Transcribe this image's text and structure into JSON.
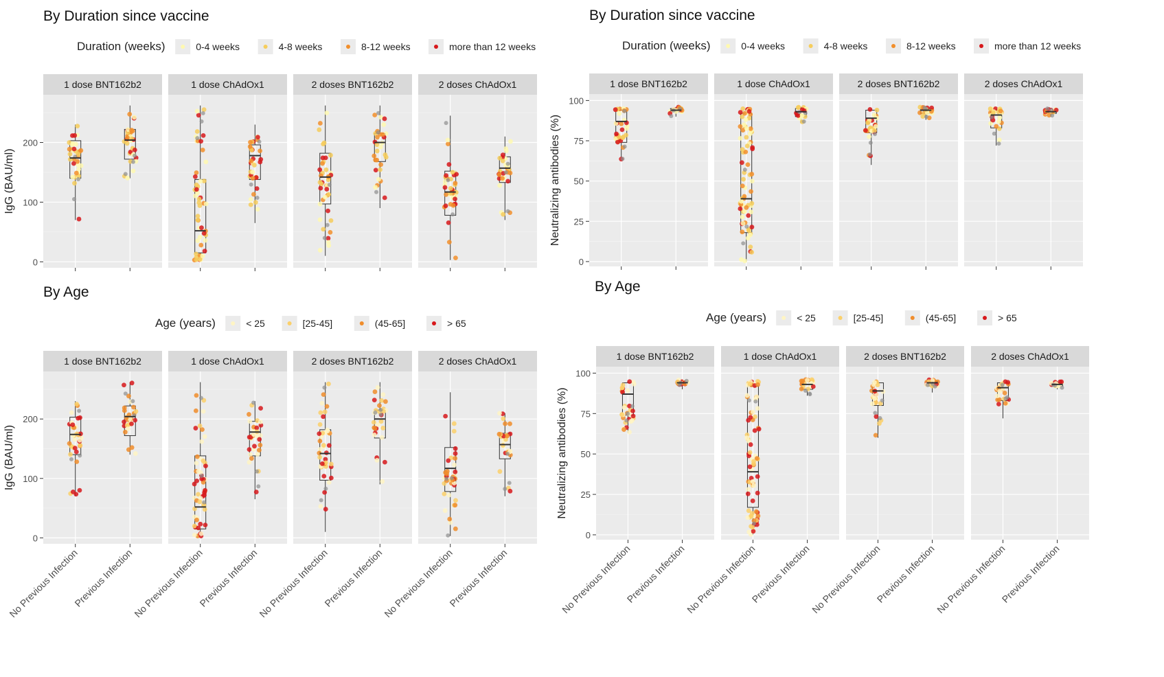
{
  "colors": {
    "panel_bg": "#ebebeb",
    "strip_bg": "#d9d9d9",
    "grid": "#ffffff",
    "box": "#333333",
    "grey_point": "#8f8f8f",
    "duration": [
      "#fff9b0",
      "#f6cd5c",
      "#f28f2b",
      "#d7191c"
    ],
    "age": [
      "#fff5c4",
      "#fbd06a",
      "#f08d2c",
      "#d7191c"
    ]
  },
  "legends": {
    "duration": {
      "title": "Duration (weeks)",
      "items": [
        "0-4 weeks",
        "4-8 weeks",
        "8-12 weeks",
        "more than 12 weeks"
      ]
    },
    "age": {
      "title": "Age (years)",
      "items": [
        "< 25",
        "[25-45]",
        "(45-65]",
        "> 65"
      ]
    }
  },
  "chart_data": [
    {
      "id": "igg_duration",
      "type": "box",
      "section_title": "By Duration since vaccine",
      "ylabel": "IgG (BAU/ml)",
      "ylim": [
        -10,
        280
      ],
      "yticks": [
        0,
        100,
        200
      ],
      "legend": "duration",
      "show_xlabels": false,
      "categories": [
        "No Previous Infection",
        "Previous Infection"
      ],
      "panels": [
        {
          "facet": "1 dose BNT162b2",
          "boxes": [
            {
              "q1": 140,
              "median": 174,
              "q3": 203,
              "whisker_low": 70,
              "whisker_high": 230
            },
            {
              "q1": 172,
              "median": 204,
              "q3": 222,
              "whisker_low": 140,
              "whisker_high": 262
            }
          ]
        },
        {
          "facet": "1 dose ChAdOx1",
          "boxes": [
            {
              "q1": 15,
              "median": 52,
              "q3": 138,
              "whisker_low": 3,
              "whisker_high": 262
            },
            {
              "q1": 138,
              "median": 178,
              "q3": 196,
              "whisker_low": 65,
              "whisker_high": 230
            }
          ]
        },
        {
          "facet": "2 doses BNT162b2",
          "boxes": [
            {
              "q1": 97,
              "median": 142,
              "q3": 182,
              "whisker_low": 10,
              "whisker_high": 262
            },
            {
              "q1": 168,
              "median": 200,
              "q3": 215,
              "whisker_low": 90,
              "whisker_high": 262
            }
          ]
        },
        {
          "facet": "2 doses ChAdOx1",
          "boxes": [
            {
              "q1": 78,
              "median": 117,
              "q3": 152,
              "whisker_low": 3,
              "whisker_high": 245
            },
            {
              "q1": 133,
              "median": 157,
              "q3": 176,
              "whisker_low": 70,
              "whisker_high": 210
            }
          ]
        }
      ]
    },
    {
      "id": "nab_duration",
      "type": "box",
      "section_title": "By Duration since vaccine",
      "ylabel": "Neutralizing antibodies (%)",
      "ylim": [
        -3,
        104
      ],
      "yticks": [
        0,
        25,
        50,
        75,
        100
      ],
      "legend": "duration",
      "show_xlabels": false,
      "categories": [
        "No Previous Infection",
        "Previous Infection"
      ],
      "panels": [
        {
          "facet": "1 dose BNT162b2",
          "boxes": [
            {
              "q1": 74,
              "median": 87,
              "q3": 94,
              "whisker_low": 63,
              "whisker_high": 95
            },
            {
              "q1": 93,
              "median": 94,
              "q3": 95,
              "whisker_low": 90,
              "whisker_high": 96
            }
          ]
        },
        {
          "facet": "1 dose ChAdOx1",
          "boxes": [
            {
              "q1": 18,
              "median": 39,
              "q3": 92,
              "whisker_low": 0,
              "whisker_high": 95
            },
            {
              "q1": 90,
              "median": 93,
              "q3": 95,
              "whisker_low": 86,
              "whisker_high": 96
            }
          ]
        },
        {
          "facet": "2 doses BNT162b2",
          "boxes": [
            {
              "q1": 80,
              "median": 89,
              "q3": 94,
              "whisker_low": 60,
              "whisker_high": 95
            },
            {
              "q1": 92,
              "median": 94,
              "q3": 95,
              "whisker_low": 88,
              "whisker_high": 96
            }
          ]
        },
        {
          "facet": "2 doses ChAdOx1",
          "boxes": [
            {
              "q1": 83,
              "median": 91,
              "q3": 94,
              "whisker_low": 72,
              "whisker_high": 95
            },
            {
              "q1": 92,
              "median": 93,
              "q3": 94,
              "whisker_low": 90,
              "whisker_high": 95
            }
          ]
        }
      ]
    },
    {
      "id": "igg_age",
      "type": "box",
      "section_title": "By Age",
      "ylabel": "IgG (BAU/ml)",
      "ylim": [
        -10,
        280
      ],
      "yticks": [
        0,
        100,
        200
      ],
      "legend": "age",
      "show_xlabels": true,
      "categories": [
        "No Previous Infection",
        "Previous Infection"
      ],
      "panels": [
        {
          "facet": "1 dose BNT162b2",
          "boxes": [
            {
              "q1": 140,
              "median": 174,
              "q3": 203,
              "whisker_low": 70,
              "whisker_high": 230
            },
            {
              "q1": 172,
              "median": 204,
              "q3": 222,
              "whisker_low": 140,
              "whisker_high": 262
            }
          ]
        },
        {
          "facet": "1 dose ChAdOx1",
          "boxes": [
            {
              "q1": 15,
              "median": 52,
              "q3": 138,
              "whisker_low": 3,
              "whisker_high": 262
            },
            {
              "q1": 138,
              "median": 178,
              "q3": 196,
              "whisker_low": 65,
              "whisker_high": 230
            }
          ]
        },
        {
          "facet": "2 doses BNT162b2",
          "boxes": [
            {
              "q1": 97,
              "median": 142,
              "q3": 182,
              "whisker_low": 10,
              "whisker_high": 262
            },
            {
              "q1": 168,
              "median": 200,
              "q3": 215,
              "whisker_low": 90,
              "whisker_high": 262
            }
          ]
        },
        {
          "facet": "2 doses ChAdOx1",
          "boxes": [
            {
              "q1": 78,
              "median": 117,
              "q3": 152,
              "whisker_low": 3,
              "whisker_high": 245
            },
            {
              "q1": 133,
              "median": 157,
              "q3": 176,
              "whisker_low": 70,
              "whisker_high": 210
            }
          ]
        }
      ]
    },
    {
      "id": "nab_age",
      "type": "box",
      "section_title": "By Age",
      "ylabel": "Neutralizing antibodies (%)",
      "ylim": [
        -3,
        104
      ],
      "yticks": [
        0,
        25,
        50,
        75,
        100
      ],
      "legend": "age",
      "show_xlabels": true,
      "categories": [
        "No Previous Infection",
        "Previous Infection"
      ],
      "panels": [
        {
          "facet": "1 dose BNT162b2",
          "boxes": [
            {
              "q1": 74,
              "median": 87,
              "q3": 94,
              "whisker_low": 63,
              "whisker_high": 95
            },
            {
              "q1": 93,
              "median": 94,
              "q3": 95,
              "whisker_low": 90,
              "whisker_high": 96
            }
          ]
        },
        {
          "facet": "1 dose ChAdOx1",
          "boxes": [
            {
              "q1": 17,
              "median": 39,
              "q3": 92,
              "whisker_low": 0,
              "whisker_high": 95
            },
            {
              "q1": 90,
              "median": 93,
              "q3": 95,
              "whisker_low": 86,
              "whisker_high": 96
            }
          ]
        },
        {
          "facet": "2 doses BNT162b2",
          "boxes": [
            {
              "q1": 80,
              "median": 89,
              "q3": 94,
              "whisker_low": 60,
              "whisker_high": 95
            },
            {
              "q1": 92,
              "median": 94,
              "q3": 95,
              "whisker_low": 88,
              "whisker_high": 96
            }
          ]
        },
        {
          "facet": "2 doses ChAdOx1",
          "boxes": [
            {
              "q1": 83,
              "median": 91,
              "q3": 94,
              "whisker_low": 72,
              "whisker_high": 95
            },
            {
              "q1": 92,
              "median": 93,
              "q3": 94,
              "whisker_low": 90,
              "whisker_high": 95
            }
          ]
        }
      ]
    }
  ]
}
